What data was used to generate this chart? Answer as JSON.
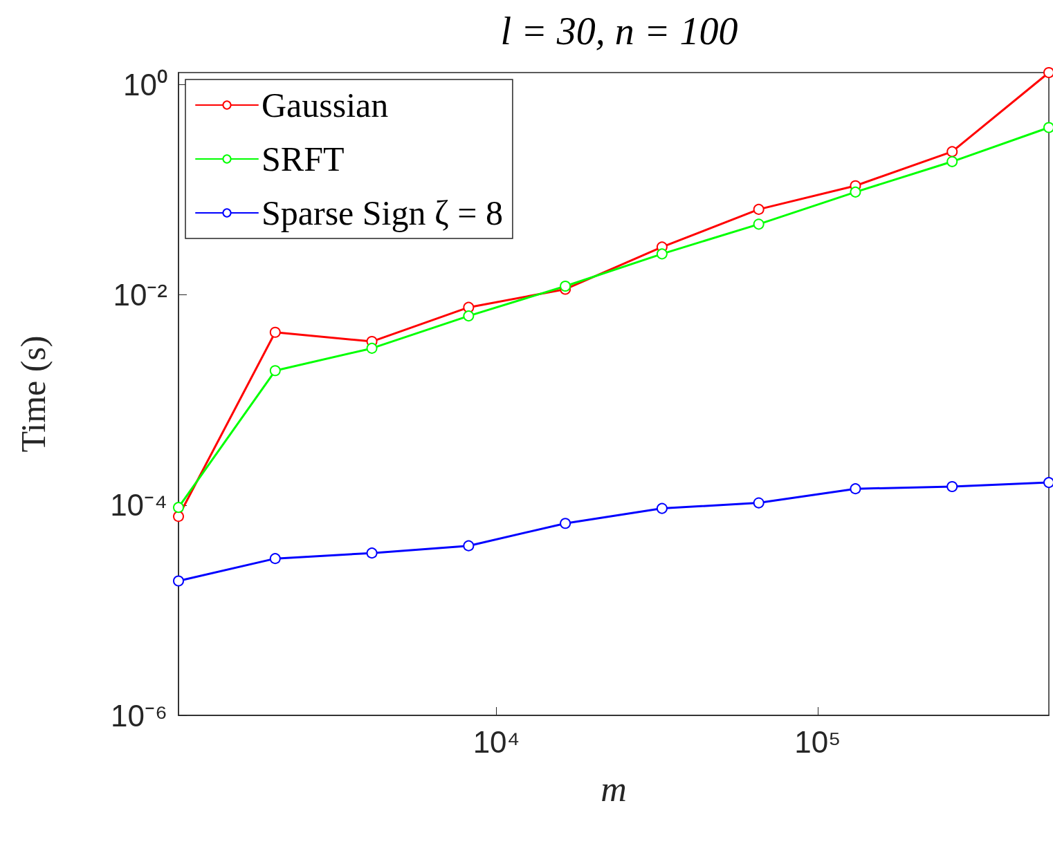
{
  "chart_data": {
    "type": "line",
    "title": "l = 30, n = 100",
    "xlabel": "m",
    "ylabel": "Time (s)",
    "x": [
      1024,
      2048,
      4096,
      8192,
      16384,
      32768,
      65536,
      131072,
      262144,
      524288
    ],
    "series": [
      {
        "name": "Gaussian",
        "color": "#ff0000",
        "values": [
          7.8e-05,
          0.0044,
          0.0036,
          0.0076,
          0.0113,
          0.0285,
          0.065,
          0.109,
          0.23,
          1.3
        ]
      },
      {
        "name": "SRFT",
        "color": "#00ff00",
        "values": [
          9.5e-05,
          0.0019,
          0.0031,
          0.0063,
          0.0121,
          0.0245,
          0.047,
          0.095,
          0.185,
          0.39
        ]
      },
      {
        "name": "Sparse Sign ζ = 8",
        "color": "#0000ff",
        "values": [
          1.9e-05,
          3.1e-05,
          3.5e-05,
          4.1e-05,
          6.7e-05,
          9.3e-05,
          0.000105,
          0.000143,
          0.00015,
          0.000164
        ]
      }
    ],
    "xlim": [
      1024,
      524288
    ],
    "ylim": [
      1e-06,
      1.3
    ],
    "xticks": [
      {
        "value": 10000,
        "label": "10⁴"
      },
      {
        "value": 100000,
        "label": "10⁵"
      }
    ],
    "yticks": [
      {
        "value": 1e-06,
        "label": "10⁻⁶"
      },
      {
        "value": 0.0001,
        "label": "10⁻⁴"
      },
      {
        "value": 0.01,
        "label": "10⁻²"
      },
      {
        "value": 1,
        "label": "10⁰"
      }
    ],
    "log": "xy",
    "grid": false,
    "legend": "top left",
    "marker": "circle",
    "line_style": "solid"
  }
}
